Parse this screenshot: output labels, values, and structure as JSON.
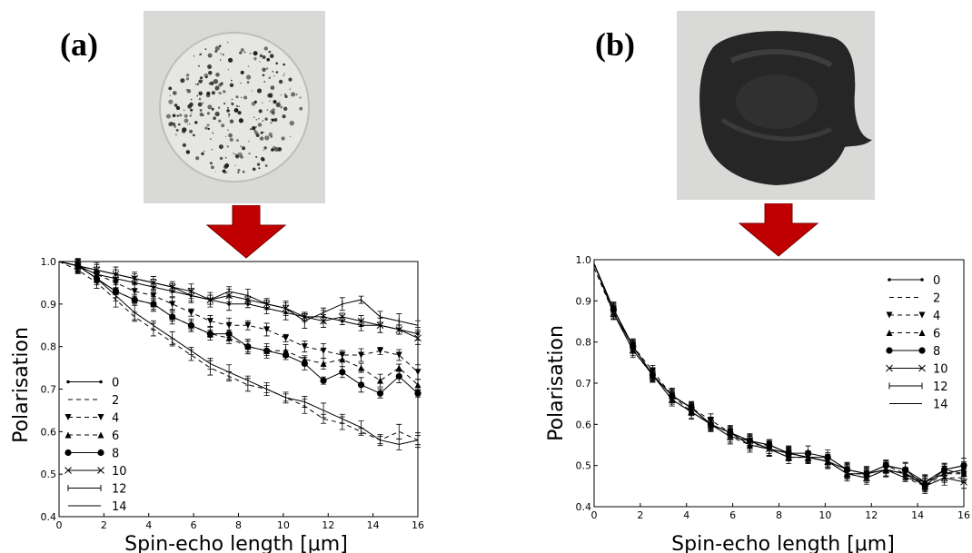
{
  "panels": [
    {
      "label": "(a)"
    },
    {
      "label": "(b)"
    }
  ],
  "chart_data": [
    {
      "type": "line",
      "title": "",
      "xlabel": "Spin-echo length [μm]",
      "ylabel": "Polarisation",
      "xlim": [
        0,
        16
      ],
      "ylim": [
        0.4,
        1.0
      ],
      "xticks": [
        0,
        2,
        4,
        6,
        8,
        10,
        12,
        14,
        16
      ],
      "yticks": [
        0.4,
        0.5,
        0.6,
        0.7,
        0.8,
        0.9,
        1.0
      ],
      "legend_position": "lower-left",
      "x": [
        0,
        0.84,
        1.68,
        2.53,
        3.37,
        4.21,
        5.05,
        5.89,
        6.74,
        7.58,
        8.42,
        9.26,
        10.11,
        10.95,
        11.79,
        12.63,
        13.47,
        14.32,
        15.16,
        16.0
      ],
      "series": [
        {
          "name": "0",
          "style": "small-dot-solid",
          "values": [
            1.0,
            0.99,
            0.97,
            0.96,
            0.95,
            0.94,
            0.93,
            0.92,
            0.91,
            0.9,
            0.9,
            0.89,
            0.88,
            0.87,
            0.87,
            0.86,
            0.85,
            0.85,
            0.84,
            0.83
          ]
        },
        {
          "name": "2",
          "style": "dashed",
          "values": [
            1.0,
            0.98,
            0.95,
            0.91,
            0.87,
            0.84,
            0.81,
            0.78,
            0.75,
            0.73,
            0.71,
            0.7,
            0.68,
            0.66,
            0.63,
            0.62,
            0.6,
            0.58,
            0.6,
            0.58
          ]
        },
        {
          "name": "4",
          "style": "triangle-down-dashed",
          "values": [
            1.0,
            0.99,
            0.97,
            0.95,
            0.93,
            0.92,
            0.9,
            0.88,
            0.86,
            0.85,
            0.85,
            0.84,
            0.82,
            0.8,
            0.79,
            0.78,
            0.78,
            0.79,
            0.78,
            0.74
          ]
        },
        {
          "name": "6",
          "style": "triangle-up-dashed",
          "values": [
            1.0,
            0.99,
            0.96,
            0.93,
            0.91,
            0.9,
            0.87,
            0.85,
            0.83,
            0.82,
            0.8,
            0.79,
            0.79,
            0.77,
            0.76,
            0.77,
            0.75,
            0.72,
            0.75,
            0.71
          ]
        },
        {
          "name": "8",
          "style": "circle-solid",
          "values": [
            1.0,
            0.99,
            0.96,
            0.93,
            0.91,
            0.9,
            0.87,
            0.85,
            0.83,
            0.83,
            0.8,
            0.79,
            0.78,
            0.76,
            0.72,
            0.74,
            0.71,
            0.69,
            0.73,
            0.69
          ]
        },
        {
          "name": "10",
          "style": "cross-solid",
          "values": [
            1.0,
            0.99,
            0.98,
            0.97,
            0.96,
            0.95,
            0.94,
            0.93,
            0.91,
            0.92,
            0.91,
            0.9,
            0.89,
            0.87,
            0.86,
            0.87,
            0.86,
            0.85,
            0.84,
            0.82
          ]
        },
        {
          "name": "12",
          "style": "errorbar-solid",
          "values": [
            1.0,
            0.99,
            0.98,
            0.97,
            0.96,
            0.95,
            0.94,
            0.92,
            0.91,
            0.93,
            0.92,
            0.9,
            0.89,
            0.86,
            0.88,
            0.9,
            0.91,
            0.87,
            0.86,
            0.85
          ]
        },
        {
          "name": "14",
          "style": "solid",
          "values": [
            1.0,
            0.99,
            0.96,
            0.92,
            0.88,
            0.85,
            0.82,
            0.79,
            0.76,
            0.74,
            0.72,
            0.7,
            0.68,
            0.67,
            0.65,
            0.63,
            0.61,
            0.58,
            0.57,
            0.58
          ]
        }
      ]
    },
    {
      "type": "line",
      "title": "",
      "xlabel": "Spin-echo length [μm]",
      "ylabel": "Polarisation",
      "xlim": [
        0,
        16
      ],
      "ylim": [
        0.4,
        1.0
      ],
      "xticks": [
        0,
        2,
        4,
        6,
        8,
        10,
        12,
        14,
        16
      ],
      "yticks": [
        0.4,
        0.5,
        0.6,
        0.7,
        0.8,
        0.9,
        1.0
      ],
      "legend_position": "upper-right",
      "x": [
        0,
        0.84,
        1.68,
        2.53,
        3.37,
        4.21,
        5.05,
        5.89,
        6.74,
        7.58,
        8.42,
        9.26,
        10.11,
        10.95,
        11.79,
        12.63,
        13.47,
        14.32,
        15.16,
        16.0
      ],
      "series": [
        {
          "name": "0",
          "style": "small-dot-solid",
          "values": [
            0.99,
            0.88,
            0.79,
            0.72,
            0.67,
            0.64,
            0.6,
            0.58,
            0.56,
            0.54,
            0.53,
            0.52,
            0.52,
            0.49,
            0.48,
            0.49,
            0.48,
            0.46,
            0.48,
            0.49
          ]
        },
        {
          "name": "2",
          "style": "dashed",
          "values": [
            0.98,
            0.87,
            0.78,
            0.72,
            0.66,
            0.63,
            0.6,
            0.57,
            0.55,
            0.54,
            0.52,
            0.52,
            0.51,
            0.48,
            0.47,
            0.49,
            0.47,
            0.45,
            0.47,
            0.47
          ]
        },
        {
          "name": "4",
          "style": "triangle-down-dashed",
          "values": [
            0.99,
            0.88,
            0.79,
            0.73,
            0.67,
            0.64,
            0.61,
            0.58,
            0.56,
            0.54,
            0.53,
            0.52,
            0.51,
            0.49,
            0.48,
            0.5,
            0.48,
            0.45,
            0.48,
            0.48
          ]
        },
        {
          "name": "6",
          "style": "triangle-up-dashed",
          "values": [
            0.99,
            0.88,
            0.79,
            0.72,
            0.67,
            0.63,
            0.6,
            0.58,
            0.55,
            0.55,
            0.53,
            0.52,
            0.51,
            0.48,
            0.48,
            0.49,
            0.48,
            0.46,
            0.49,
            0.48
          ]
        },
        {
          "name": "8",
          "style": "circle-solid",
          "values": [
            0.99,
            0.88,
            0.79,
            0.72,
            0.67,
            0.64,
            0.6,
            0.58,
            0.56,
            0.55,
            0.53,
            0.53,
            0.52,
            0.49,
            0.48,
            0.5,
            0.49,
            0.45,
            0.49,
            0.5
          ]
        },
        {
          "name": "10",
          "style": "cross-solid",
          "values": [
            0.99,
            0.87,
            0.78,
            0.72,
            0.66,
            0.63,
            0.6,
            0.57,
            0.56,
            0.54,
            0.52,
            0.52,
            0.51,
            0.48,
            0.47,
            0.49,
            0.48,
            0.45,
            0.47,
            0.46
          ]
        },
        {
          "name": "12",
          "style": "errorbar-solid",
          "values": [
            0.99,
            0.88,
            0.79,
            0.72,
            0.67,
            0.64,
            0.6,
            0.58,
            0.56,
            0.55,
            0.53,
            0.52,
            0.51,
            0.49,
            0.48,
            0.49,
            0.47,
            0.46,
            0.48,
            0.49
          ]
        },
        {
          "name": "14",
          "style": "solid",
          "values": [
            0.99,
            0.87,
            0.79,
            0.72,
            0.67,
            0.64,
            0.6,
            0.58,
            0.55,
            0.54,
            0.53,
            0.52,
            0.51,
            0.48,
            0.48,
            0.5,
            0.49,
            0.46,
            0.49,
            0.5
          ]
        }
      ]
    }
  ],
  "arrow_color": "#c00000",
  "photo_background": "#dcdcda"
}
